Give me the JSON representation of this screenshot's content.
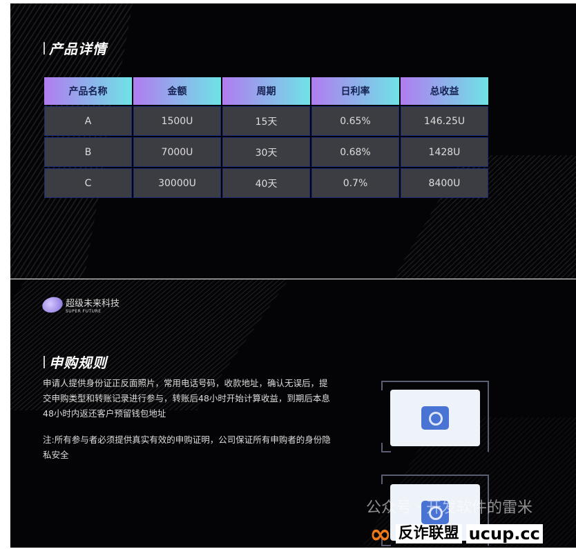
{
  "product_section": {
    "title": "产品详情",
    "columns": [
      "产品名称",
      "金额",
      "周期",
      "日利率",
      "总收益"
    ],
    "rows": [
      [
        "A",
        "1500U",
        "15天",
        "0.65%",
        "146.25U"
      ],
      [
        "B",
        "7000U",
        "30天",
        "0.68%",
        "1428U"
      ],
      [
        "C",
        "30000U",
        "40天",
        "0.7%",
        "8400U"
      ]
    ]
  },
  "logo": {
    "name": "超级未来科技",
    "subtitle": "SUPER FUTURE"
  },
  "rules_section": {
    "title": "申购规则",
    "paragraph": "申请人提供身份证正反面照片，常用电话号码，收款地址，确认无误后，提交申购类型和转账记录进行参与，转账后48小时开始计算收益，到期后本息48小时内返还客户预留钱包地址",
    "note": "注:所有参与者必须提供真实有效的申购证明，公司保证所有申购者的身份隐私安全"
  },
  "watermark": {
    "text": "公众号 · 开发软件的雷米",
    "brand": "反诈联盟",
    "site": "ucup.cc"
  },
  "colors": {
    "header_gradient_start": "#b07cf0",
    "header_gradient_end": "#6fe3e6",
    "cell_bg": "#3c3d42",
    "camera": "#4a74d4"
  }
}
